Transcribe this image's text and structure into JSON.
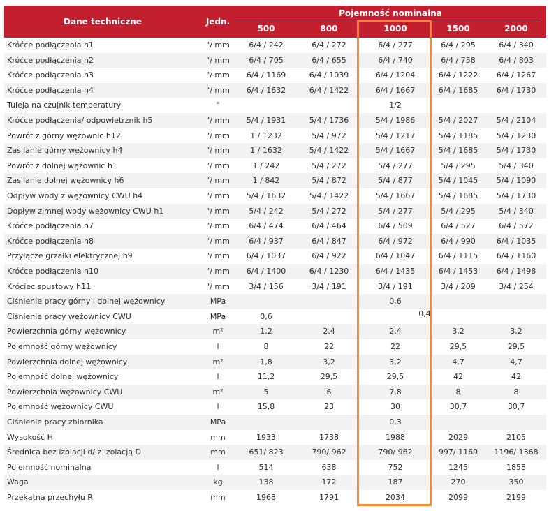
{
  "header": {
    "col_label": "Dane techniczne",
    "col_unit": "Jedn.",
    "group": "Pojemność nominalna",
    "capacities": [
      "500",
      "800",
      "1000",
      "1500",
      "2000"
    ]
  },
  "colors": {
    "header_bg": "#c41f2f",
    "highlight": "#f58a33",
    "stripe": "#f2f2f2"
  },
  "rows": [
    {
      "label": "Króćce podłączenia h1",
      "unit": "\"/ mm",
      "values": [
        "6/4  /  242",
        "6/4  /  272",
        "6/4  /  277",
        "6/4  /  295",
        "6/4  /  340"
      ]
    },
    {
      "label": "Króćce podłączenia h2",
      "unit": "\"/ mm",
      "values": [
        "6/4  /  705",
        "6/4  /  655",
        "6/4  /  740",
        "6/4  /  758",
        "6/4  /  803"
      ]
    },
    {
      "label": "Króćce podłączenia h3",
      "unit": "\"/ mm",
      "values": [
        "6/4  /  1169",
        "6/4  /  1039",
        "6/4  /  1204",
        "6/4  /  1222",
        "6/4  /  1267"
      ]
    },
    {
      "label": "Króćce podłączenia h4",
      "unit": "\"/ mm",
      "values": [
        "6/4  /  1632",
        "6/4  /  1422",
        "6/4  /  1667",
        "6/4  /  1685",
        "6/4  /  1730"
      ]
    },
    {
      "label": "Tuleja na czujnik temperatury",
      "unit": "\"",
      "span": "1/2"
    },
    {
      "label": "Króćce podłączenia/ odpowietrznik h5",
      "unit": "\"/ mm",
      "values": [
        "5/4  /  1931",
        "5/4  /  1736",
        "5/4  /  1986",
        "5/4  /  2027",
        "5/4  /  2104"
      ]
    },
    {
      "label": "Powrót z górny wężownic h12",
      "unit": "\"/ mm",
      "values": [
        "1  /  1232",
        "5/4  /  972",
        "5/4  /  1217",
        "5/4  /  1185",
        "5/4  /  1230"
      ]
    },
    {
      "label": "Zasilanie górny wężownicy h4",
      "unit": "\"/ mm",
      "values": [
        "1  /  1632",
        "5/4  /  1422",
        "5/4  /  1667",
        "5/4  /  1685",
        "5/4  /  1730"
      ]
    },
    {
      "label": "Powrót z dolnej wężownic h1",
      "unit": "\"/ mm",
      "values": [
        "1  /  242",
        "5/4  /  272",
        "5/4  /  277",
        "5/4  /  295",
        "5/4  /  340"
      ]
    },
    {
      "label": "Zasilanie dolnej wężownicy h6",
      "unit": "\"/ mm",
      "values": [
        "1  /  842",
        "5/4  /  872",
        "5/4  /  877",
        "5/4  /  1045",
        "5/4  /  1090"
      ]
    },
    {
      "label": "Odpływ wody z wężownicy CWU h4",
      "unit": "\"/ mm",
      "values": [
        "5/4  /  1632",
        "5/4  /  1422",
        "5/4  /  1667",
        "5/4  /  1685",
        "5/4  /  1730"
      ]
    },
    {
      "label": "Dopływ zimnej wody wężownicy CWU h1",
      "unit": "\"/ mm",
      "values": [
        "5/4  /  242",
        "5/4  /  272",
        "5/4  /  277",
        "5/4  /  295",
        "5/4  /  340"
      ]
    },
    {
      "label": "Króćce podłączenia h7",
      "unit": "\"/ mm",
      "values": [
        "6/4  /  474",
        "6/4  /  464",
        "6/4  /  509",
        "6/4  /  527",
        "6/4  /  572"
      ]
    },
    {
      "label": "Króćce podłączenia h8",
      "unit": "\"/ mm",
      "values": [
        "6/4  /  937",
        "6/4  /  847",
        "6/4  /  972",
        "6/4  /  990",
        "6/4  /  1035"
      ]
    },
    {
      "label": "Przyłącze grzałki elektrycznej h9",
      "unit": "\"/ mm",
      "values": [
        "6/4  /  1037",
        "6/4  /  922",
        "6/4  /  1047",
        "6/4  /  1115",
        "6/4  /  1160"
      ]
    },
    {
      "label": "Króćce podłączenia h10",
      "unit": "\"/ mm",
      "values": [
        "6/4  /  1400",
        "6/4  /  1230",
        "6/4  /  1435",
        "6/4  /  1453",
        "6/4  /  1498"
      ]
    },
    {
      "label": "Króciec spustowy h11",
      "unit": "\"/ mm",
      "values": [
        "3/4  /  156",
        "3/4  /  191",
        "3/4  /  191",
        "3/4  /  209",
        "3/4  /  254"
      ]
    },
    {
      "label": "Ciśnienie pracy górny i dolnej wężownicy",
      "unit": "MPa",
      "span": "0,6"
    },
    {
      "label": "Ciśnienie pracy wężownicy CWU",
      "unit": "MPa",
      "values": [
        "0,6",
        "",
        "",
        "",
        ""
      ],
      "extra": "0,4"
    },
    {
      "label": "Powierzchnia górny wężownicy",
      "unit": "m²",
      "values": [
        "1,2",
        "2,4",
        "2,4",
        "3,2",
        "3,2"
      ]
    },
    {
      "label": "Pojemność górny wężownicy",
      "unit": "l",
      "values": [
        "8",
        "22",
        "22",
        "29,5",
        "29,5"
      ]
    },
    {
      "label": "Powierzchnia dolnej wężownicy",
      "unit": "m²",
      "values": [
        "1,8",
        "3,2",
        "3,2",
        "4,7",
        "4,7"
      ]
    },
    {
      "label": "Pojemność dolnej wężownicy",
      "unit": "l",
      "values": [
        "11,2",
        "29,5",
        "29,5",
        "42",
        "42"
      ]
    },
    {
      "label": "Powierzchnia wężownicy CWU",
      "unit": "m²",
      "values": [
        "5",
        "6",
        "7,8",
        "8",
        "8"
      ]
    },
    {
      "label": "Pojemność wężownicy CWU",
      "unit": "l",
      "values": [
        "15,8",
        "23",
        "30",
        "30,7",
        "30,7"
      ]
    },
    {
      "label": "Ciśnienie pracy zbiornika",
      "unit": "MPa",
      "span": "0,3"
    },
    {
      "label": "Wysokość H",
      "unit": "mm",
      "values": [
        "1933",
        "1738",
        "1988",
        "2029",
        "2105"
      ]
    },
    {
      "label": "Średnica bez izolacji d/ z izolacją D",
      "unit": "mm",
      "values": [
        "651/ 823",
        "790/ 962",
        "790/ 962",
        "997/ 1169",
        "1196/ 1368"
      ]
    },
    {
      "label": "Pojemność nominalna",
      "unit": "l",
      "values": [
        "514",
        "638",
        "752",
        "1245",
        "1858"
      ]
    },
    {
      "label": "Waga",
      "unit": "kg",
      "values": [
        "138",
        "172",
        "187",
        "270",
        "350"
      ]
    },
    {
      "label": "Przekątna przechyłu R",
      "unit": "mm",
      "values": [
        "1968",
        "1791",
        "2034",
        "2099",
        "2199"
      ]
    }
  ]
}
